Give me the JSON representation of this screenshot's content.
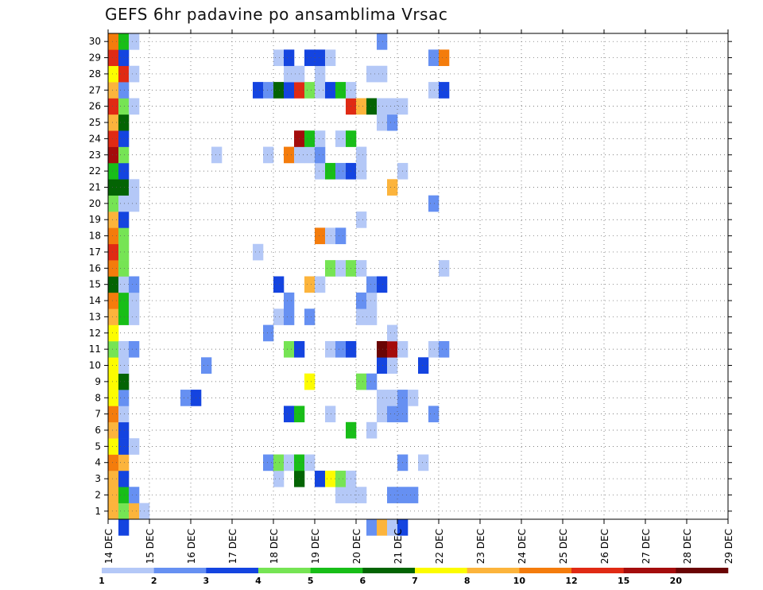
{
  "chart_data": {
    "type": "heatmap",
    "title": "GEFS 6hr padavine po ansamblima Vrsac",
    "xlabel": "",
    "ylabel": "",
    "x_tick_labels": [
      "14 DEC",
      "15 DEC",
      "16 DEC",
      "17 DEC",
      "18 DEC",
      "19 DEC",
      "20 DEC",
      "21 DEC",
      "22 DEC",
      "23 DEC",
      "24 DEC",
      "25 DEC",
      "26 DEC",
      "27 DEC",
      "28 DEC",
      "29 DEC"
    ],
    "y_tick_labels": [
      "1",
      "2",
      "3",
      "4",
      "5",
      "6",
      "7",
      "8",
      "9",
      "10",
      "11",
      "12",
      "13",
      "14",
      "15",
      "16",
      "17",
      "18",
      "19",
      "20",
      "21",
      "22",
      "23",
      "24",
      "25",
      "26",
      "27",
      "28",
      "29",
      "30"
    ],
    "x_range": [
      "14 DEC 00Z",
      "29 DEC 00Z"
    ],
    "x_step_hours": 6,
    "y_range": [
      0,
      30
    ],
    "grid": true,
    "legend_placement": "bottom",
    "legend_levels": [
      "1",
      "2",
      "3",
      "4",
      "5",
      "6",
      "7",
      "8",
      "10",
      "12",
      "15",
      "20"
    ],
    "legend_colors": [
      "#b4c8f7",
      "#6690f2",
      "#1444e0",
      "#76e454",
      "#18be18",
      "#046404",
      "#fcfc00",
      "#fcb43c",
      "#f47c0c",
      "#e02a14",
      "#a40c0c",
      "#6a0404"
    ],
    "cells": [
      [
        0,
        0,
        "#fcb43c"
      ],
      [
        0,
        1,
        "#76e454"
      ],
      [
        0,
        2,
        "#fcb43c"
      ],
      [
        0,
        3,
        "#b4c8f7"
      ],
      [
        1,
        0,
        "#fcb43c"
      ],
      [
        1,
        1,
        "#18be18"
      ],
      [
        1,
        2,
        "#6690f2"
      ],
      [
        1,
        22,
        "#b4c8f7"
      ],
      [
        1,
        23,
        "#b4c8f7"
      ],
      [
        1,
        24,
        "#b4c8f7"
      ],
      [
        1,
        27,
        "#6690f2"
      ],
      [
        1,
        28,
        "#6690f2"
      ],
      [
        1,
        29,
        "#6690f2"
      ],
      [
        2,
        0,
        "#fcb43c"
      ],
      [
        2,
        1,
        "#1444e0"
      ],
      [
        2,
        16,
        "#b4c8f7"
      ],
      [
        2,
        18,
        "#046404"
      ],
      [
        2,
        20,
        "#1444e0"
      ],
      [
        2,
        21,
        "#fcfc00"
      ],
      [
        2,
        22,
        "#76e454"
      ],
      [
        2,
        23,
        "#b4c8f7"
      ],
      [
        3,
        0,
        "#f47c0c"
      ],
      [
        3,
        1,
        "#fcb43c"
      ],
      [
        3,
        15,
        "#6690f2"
      ],
      [
        3,
        16,
        "#76e454"
      ],
      [
        3,
        17,
        "#b4c8f7"
      ],
      [
        3,
        18,
        "#18be18"
      ],
      [
        3,
        19,
        "#b4c8f7"
      ],
      [
        3,
        28,
        "#6690f2"
      ],
      [
        3,
        30,
        "#b4c8f7"
      ],
      [
        4,
        0,
        "#fcfc00"
      ],
      [
        4,
        1,
        "#1444e0"
      ],
      [
        4,
        2,
        "#b4c8f7"
      ],
      [
        5,
        0,
        "#fcb43c"
      ],
      [
        5,
        1,
        "#1444e0"
      ],
      [
        5,
        23,
        "#18be18"
      ],
      [
        5,
        25,
        "#b4c8f7"
      ],
      [
        6,
        0,
        "#f47c0c"
      ],
      [
        6,
        1,
        "#b4c8f7"
      ],
      [
        6,
        17,
        "#1444e0"
      ],
      [
        6,
        18,
        "#18be18"
      ],
      [
        6,
        21,
        "#b4c8f7"
      ],
      [
        6,
        26,
        "#b4c8f7"
      ],
      [
        6,
        27,
        "#6690f2"
      ],
      [
        6,
        28,
        "#6690f2"
      ],
      [
        6,
        31,
        "#6690f2"
      ],
      [
        7,
        0,
        "#fcfc00"
      ],
      [
        7,
        1,
        "#6690f2"
      ],
      [
        7,
        7,
        "#6690f2"
      ],
      [
        7,
        8,
        "#1444e0"
      ],
      [
        7,
        26,
        "#b4c8f7"
      ],
      [
        7,
        27,
        "#b4c8f7"
      ],
      [
        7,
        28,
        "#6690f2"
      ],
      [
        7,
        29,
        "#b4c8f7"
      ],
      [
        8,
        0,
        "#fcfc00"
      ],
      [
        8,
        1,
        "#046404"
      ],
      [
        8,
        19,
        "#fcfc00"
      ],
      [
        8,
        24,
        "#76e454"
      ],
      [
        8,
        25,
        "#6690f2"
      ],
      [
        9,
        0,
        "#fcfc00"
      ],
      [
        9,
        1,
        "#b4c8f7"
      ],
      [
        9,
        9,
        "#6690f2"
      ],
      [
        9,
        26,
        "#1444e0"
      ],
      [
        9,
        27,
        "#b4c8f7"
      ],
      [
        9,
        30,
        "#1444e0"
      ],
      [
        10,
        0,
        "#76e454"
      ],
      [
        10,
        1,
        "#b4c8f7"
      ],
      [
        10,
        2,
        "#6690f2"
      ],
      [
        10,
        17,
        "#76e454"
      ],
      [
        10,
        18,
        "#1444e0"
      ],
      [
        10,
        21,
        "#b4c8f7"
      ],
      [
        10,
        22,
        "#6690f2"
      ],
      [
        10,
        23,
        "#1444e0"
      ],
      [
        10,
        26,
        "#6a0404"
      ],
      [
        10,
        27,
        "#a40c0c"
      ],
      [
        10,
        28,
        "#b4c8f7"
      ],
      [
        10,
        31,
        "#b4c8f7"
      ],
      [
        10,
        32,
        "#6690f2"
      ],
      [
        11,
        0,
        "#fcfc00"
      ],
      [
        11,
        15,
        "#6690f2"
      ],
      [
        11,
        27,
        "#b4c8f7"
      ],
      [
        12,
        0,
        "#fcb43c"
      ],
      [
        12,
        1,
        "#18be18"
      ],
      [
        12,
        2,
        "#b4c8f7"
      ],
      [
        12,
        16,
        "#b4c8f7"
      ],
      [
        12,
        17,
        "#6690f2"
      ],
      [
        12,
        19,
        "#6690f2"
      ],
      [
        12,
        24,
        "#b4c8f7"
      ],
      [
        12,
        25,
        "#b4c8f7"
      ],
      [
        13,
        0,
        "#f47c0c"
      ],
      [
        13,
        1,
        "#18be18"
      ],
      [
        13,
        2,
        "#b4c8f7"
      ],
      [
        13,
        17,
        "#6690f2"
      ],
      [
        13,
        24,
        "#6690f2"
      ],
      [
        13,
        25,
        "#b4c8f7"
      ],
      [
        14,
        0,
        "#046404"
      ],
      [
        14,
        1,
        "#b4c8f7"
      ],
      [
        14,
        2,
        "#6690f2"
      ],
      [
        14,
        16,
        "#1444e0"
      ],
      [
        14,
        19,
        "#fcb43c"
      ],
      [
        14,
        20,
        "#b4c8f7"
      ],
      [
        14,
        25,
        "#6690f2"
      ],
      [
        14,
        26,
        "#1444e0"
      ],
      [
        15,
        0,
        "#f47c0c"
      ],
      [
        15,
        1,
        "#76e454"
      ],
      [
        15,
        21,
        "#76e454"
      ],
      [
        15,
        22,
        "#b4c8f7"
      ],
      [
        15,
        23,
        "#76e454"
      ],
      [
        15,
        24,
        "#b4c8f7"
      ],
      [
        15,
        32,
        "#b4c8f7"
      ],
      [
        16,
        0,
        "#e02a14"
      ],
      [
        16,
        1,
        "#76e454"
      ],
      [
        16,
        14,
        "#b4c8f7"
      ],
      [
        17,
        0,
        "#f47c0c"
      ],
      [
        17,
        1,
        "#76e454"
      ],
      [
        17,
        20,
        "#f47c0c"
      ],
      [
        17,
        21,
        "#b4c8f7"
      ],
      [
        17,
        22,
        "#6690f2"
      ],
      [
        18,
        0,
        "#fcb43c"
      ],
      [
        18,
        1,
        "#1444e0"
      ],
      [
        18,
        24,
        "#b4c8f7"
      ],
      [
        19,
        0,
        "#76e454"
      ],
      [
        19,
        1,
        "#b4c8f7"
      ],
      [
        19,
        2,
        "#b4c8f7"
      ],
      [
        19,
        31,
        "#6690f2"
      ],
      [
        20,
        0,
        "#046404"
      ],
      [
        20,
        1,
        "#046404"
      ],
      [
        20,
        2,
        "#b4c8f7"
      ],
      [
        20,
        27,
        "#fcb43c"
      ],
      [
        21,
        0,
        "#18be18"
      ],
      [
        21,
        1,
        "#1444e0"
      ],
      [
        21,
        20,
        "#b4c8f7"
      ],
      [
        21,
        21,
        "#18be18"
      ],
      [
        21,
        22,
        "#6690f2"
      ],
      [
        21,
        23,
        "#1444e0"
      ],
      [
        21,
        24,
        "#b4c8f7"
      ],
      [
        21,
        28,
        "#b4c8f7"
      ],
      [
        22,
        0,
        "#a40c0c"
      ],
      [
        22,
        1,
        "#76e454"
      ],
      [
        22,
        10,
        "#b4c8f7"
      ],
      [
        22,
        15,
        "#b4c8f7"
      ],
      [
        22,
        17,
        "#f47c0c"
      ],
      [
        22,
        18,
        "#b4c8f7"
      ],
      [
        22,
        19,
        "#b4c8f7"
      ],
      [
        22,
        20,
        "#6690f2"
      ],
      [
        22,
        24,
        "#b4c8f7"
      ],
      [
        23,
        0,
        "#e02a14"
      ],
      [
        23,
        1,
        "#1444e0"
      ],
      [
        23,
        18,
        "#a40c0c"
      ],
      [
        23,
        19,
        "#18be18"
      ],
      [
        23,
        20,
        "#b4c8f7"
      ],
      [
        23,
        22,
        "#b4c8f7"
      ],
      [
        23,
        23,
        "#18be18"
      ],
      [
        24,
        0,
        "#fcb43c"
      ],
      [
        24,
        1,
        "#046404"
      ],
      [
        24,
        26,
        "#b4c8f7"
      ],
      [
        24,
        27,
        "#6690f2"
      ],
      [
        25,
        0,
        "#e02a14"
      ],
      [
        25,
        1,
        "#76e454"
      ],
      [
        25,
        2,
        "#b4c8f7"
      ],
      [
        25,
        23,
        "#e02a14"
      ],
      [
        25,
        24,
        "#fcb43c"
      ],
      [
        25,
        25,
        "#046404"
      ],
      [
        25,
        26,
        "#b4c8f7"
      ],
      [
        25,
        27,
        "#b4c8f7"
      ],
      [
        25,
        28,
        "#b4c8f7"
      ],
      [
        26,
        0,
        "#fcb43c"
      ],
      [
        26,
        1,
        "#6690f2"
      ],
      [
        26,
        14,
        "#1444e0"
      ],
      [
        26,
        15,
        "#6690f2"
      ],
      [
        26,
        16,
        "#046404"
      ],
      [
        26,
        17,
        "#1444e0"
      ],
      [
        26,
        18,
        "#e02a14"
      ],
      [
        26,
        19,
        "#76e454"
      ],
      [
        26,
        20,
        "#b4c8f7"
      ],
      [
        26,
        21,
        "#1444e0"
      ],
      [
        26,
        22,
        "#18be18"
      ],
      [
        26,
        23,
        "#b4c8f7"
      ],
      [
        26,
        31,
        "#b4c8f7"
      ],
      [
        26,
        32,
        "#1444e0"
      ],
      [
        27,
        0,
        "#fcfc00"
      ],
      [
        27,
        1,
        "#e02a14"
      ],
      [
        27,
        2,
        "#b4c8f7"
      ],
      [
        27,
        17,
        "#b4c8f7"
      ],
      [
        27,
        18,
        "#b4c8f7"
      ],
      [
        27,
        20,
        "#b4c8f7"
      ],
      [
        27,
        25,
        "#b4c8f7"
      ],
      [
        27,
        26,
        "#b4c8f7"
      ],
      [
        28,
        0,
        "#e02a14"
      ],
      [
        28,
        1,
        "#1444e0"
      ],
      [
        28,
        16,
        "#b4c8f7"
      ],
      [
        28,
        17,
        "#1444e0"
      ],
      [
        28,
        19,
        "#1444e0"
      ],
      [
        28,
        20,
        "#1444e0"
      ],
      [
        28,
        21,
        "#b4c8f7"
      ],
      [
        28,
        31,
        "#6690f2"
      ],
      [
        28,
        32,
        "#f47c0c"
      ],
      [
        29,
        0,
        "#f47c0c"
      ],
      [
        29,
        1,
        "#18be18"
      ],
      [
        29,
        2,
        "#b4c8f7"
      ],
      [
        29,
        26,
        "#6690f2"
      ],
      [
        -1,
        1,
        "#1444e0"
      ],
      [
        -1,
        25,
        "#6690f2"
      ],
      [
        -1,
        26,
        "#fcb43c"
      ],
      [
        -1,
        27,
        "#b4c8f7"
      ],
      [
        -1,
        28,
        "#1444e0"
      ]
    ]
  }
}
